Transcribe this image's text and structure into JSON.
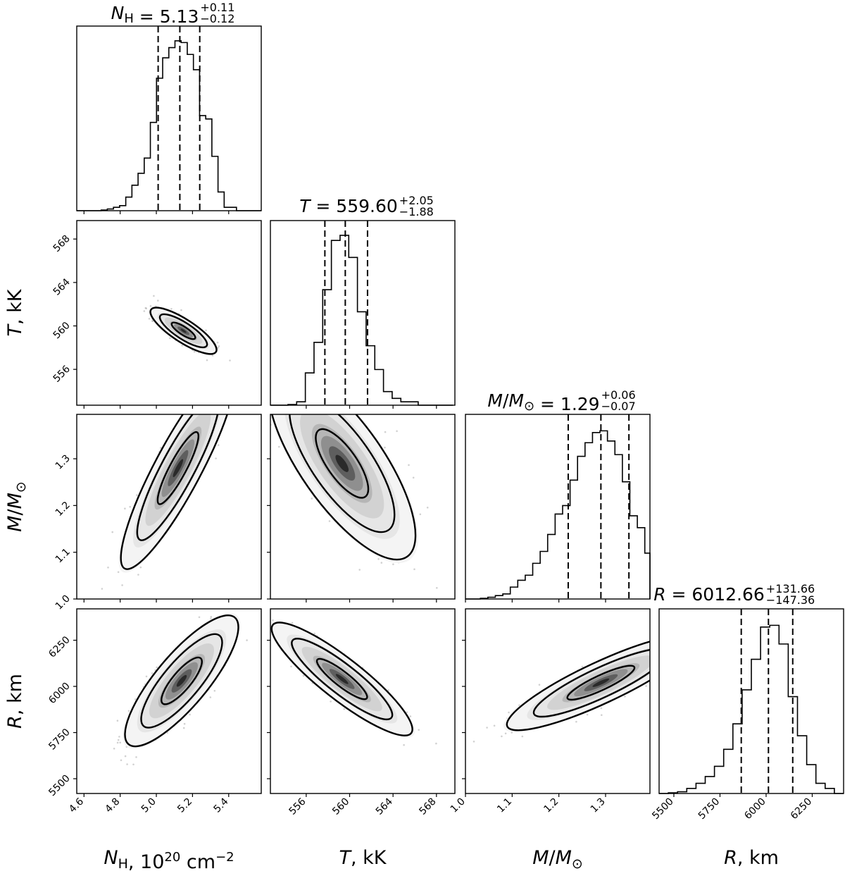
{
  "chart_data": {
    "type": "corner",
    "parameters": [
      {
        "key": "NH",
        "axis_label": "N_H, 10^20 cm^-2",
        "label_parts": {
          "sym": "N",
          "sub": "H",
          "rest": ", 10",
          "sup": "20",
          "unit": " cm",
          "unit_sup": "−2"
        },
        "range": [
          4.56,
          5.58
        ],
        "ticks": [
          "4.6",
          "4.8",
          "5.0",
          "5.2",
          "5.4"
        ],
        "median": 5.13,
        "err_plus": 0.11,
        "err_minus": 0.12,
        "title": {
          "sym": "N",
          "sub": "H",
          "value": " = 5.13",
          "plus": "+0.11",
          "minus": "−0.12"
        },
        "hist_x": [
          4.576,
          4.61,
          4.644,
          4.678,
          4.712,
          4.746,
          4.78,
          4.814,
          4.848,
          4.882,
          4.916,
          4.95,
          4.984,
          5.018,
          5.052,
          5.086,
          5.12,
          5.154,
          5.188,
          5.222,
          5.256,
          5.29,
          5.324,
          5.358,
          5.392,
          5.426,
          5.46,
          5.494,
          5.528,
          5.562
        ],
        "hist_y": [
          0.0,
          0.0,
          0.0,
          0.0,
          0.004,
          0.01,
          0.02,
          0.03,
          0.08,
          0.15,
          0.22,
          0.31,
          0.52,
          0.78,
          0.9,
          0.96,
          1.0,
          0.99,
          0.92,
          0.83,
          0.56,
          0.54,
          0.32,
          0.11,
          0.02,
          0.02,
          0.0,
          0.0,
          0.0,
          0.0
        ],
        "quantiles": [
          5.01,
          5.13,
          5.24
        ]
      },
      {
        "key": "T",
        "axis_label": "T, kK",
        "label_parts": {
          "sym": "T",
          "rest": ", kK"
        },
        "range": [
          552.7,
          569.7
        ],
        "ticks": [
          "556",
          "560",
          "564",
          "568"
        ],
        "median": 559.6,
        "err_plus": 2.05,
        "err_minus": 1.88,
        "title": {
          "sym": "T",
          "value": " = 559.60",
          "plus": "+2.05",
          "minus": "−1.88"
        },
        "hist_x": [
          553.12,
          553.92,
          554.72,
          555.52,
          556.32,
          557.12,
          557.92,
          558.72,
          559.52,
          560.32,
          561.12,
          561.92,
          562.72,
          563.52,
          564.32,
          565.12,
          565.92,
          566.72,
          567.52,
          568.32,
          569.12
        ],
        "hist_y": [
          0.0,
          0.0,
          0.004,
          0.02,
          0.19,
          0.37,
          0.68,
          0.97,
          1.0,
          0.87,
          0.55,
          0.35,
          0.21,
          0.08,
          0.04,
          0.02,
          0.02,
          0.0,
          0.0,
          0.0,
          0.0
        ],
        "quantiles": [
          557.72,
          559.6,
          561.65
        ]
      },
      {
        "key": "M",
        "axis_label": "M/M_sun",
        "label_parts": {
          "sym": "M",
          "rest": "/",
          "sym2": "M",
          "sub2": "⊙"
        },
        "range": [
          1.0,
          1.395
        ],
        "ticks": [
          "1.0",
          "1.1",
          "1.2",
          "1.3"
        ],
        "median": 1.29,
        "err_plus": 0.06,
        "err_minus": 0.07,
        "title": {
          "sym": "M",
          "rest": "/",
          "sym2": "M",
          "sub2": "⊙",
          "value": " = 1.29",
          "plus": "+0.06",
          "minus": "−0.07"
        },
        "hist_x": [
          1.008,
          1.024,
          1.04,
          1.056,
          1.072,
          1.088,
          1.104,
          1.12,
          1.136,
          1.152,
          1.168,
          1.184,
          1.2,
          1.216,
          1.232,
          1.248,
          1.264,
          1.28,
          1.296,
          1.312,
          1.328,
          1.344,
          1.36,
          1.376,
          1.392
        ],
        "hist_y": [
          0.0,
          0.0,
          0.004,
          0.01,
          0.02,
          0.03,
          0.07,
          0.11,
          0.14,
          0.21,
          0.28,
          0.38,
          0.5,
          0.55,
          0.7,
          0.84,
          0.92,
          0.98,
          0.99,
          0.93,
          0.85,
          0.69,
          0.49,
          0.42,
          0.27
        ],
        "quantiles": [
          1.22,
          1.29,
          1.35
        ]
      },
      {
        "key": "R",
        "axis_label": "R, km",
        "label_parts": {
          "sym": "R",
          "rest": ", km"
        },
        "range": [
          5420,
          6420
        ],
        "ticks": [
          "5500",
          "5750",
          "6000",
          "6250"
        ],
        "median": 6012.66,
        "err_plus": 131.66,
        "err_minus": 147.36,
        "title": {
          "sym": "R",
          "value": " = 6012.66",
          "plus": "+131.66",
          "minus": "−147.36"
        },
        "hist_x": [
          5445,
          5495,
          5545,
          5595,
          5645,
          5695,
          5745,
          5795,
          5845,
          5895,
          5945,
          5995,
          6045,
          6095,
          6145,
          6195,
          6245,
          6295,
          6345,
          6395
        ],
        "hist_y": [
          0.0,
          0.004,
          0.01,
          0.03,
          0.06,
          0.1,
          0.16,
          0.26,
          0.41,
          0.61,
          0.79,
          0.98,
          0.99,
          0.88,
          0.57,
          0.34,
          0.17,
          0.06,
          0.03,
          0.0
        ],
        "quantiles": [
          5865.3,
          6012.66,
          6144.32
        ]
      }
    ],
    "pairs": [
      {
        "row": 1,
        "col": 0,
        "center": [
          5.15,
          559.55
        ],
        "rot_deg": -33,
        "a": 0.075,
        "b": 0.022,
        "levels": [
          1.0,
          2.0,
          2.8
        ]
      },
      {
        "row": 2,
        "col": 0,
        "center": [
          5.12,
          1.28
        ],
        "rot_deg": 62,
        "a": 0.22,
        "b": 0.045,
        "levels": [
          1.0,
          2.0,
          2.8
        ]
      },
      {
        "row": 2,
        "col": 1,
        "center": [
          559.3,
          1.29
        ],
        "rot_deg": -55,
        "a": 0.22,
        "b": 0.08,
        "levels": [
          1.0,
          2.0,
          2.8
        ]
      },
      {
        "row": 3,
        "col": 0,
        "center": [
          5.14,
          6030
        ],
        "rot_deg": 50,
        "a": 0.16,
        "b": 0.05,
        "levels": [
          1.0,
          2.0,
          2.8
        ]
      },
      {
        "row": 3,
        "col": 1,
        "center": [
          559.3,
          6040
        ],
        "rot_deg": -38,
        "a": 0.17,
        "b": 0.04,
        "levels": [
          1.0,
          2.0,
          2.8
        ]
      },
      {
        "row": 3,
        "col": 2,
        "center": [
          1.29,
          6020
        ],
        "rot_deg": 25,
        "a": 0.2,
        "b": 0.04,
        "levels": [
          1.0,
          2.0,
          2.8
        ]
      }
    ]
  }
}
